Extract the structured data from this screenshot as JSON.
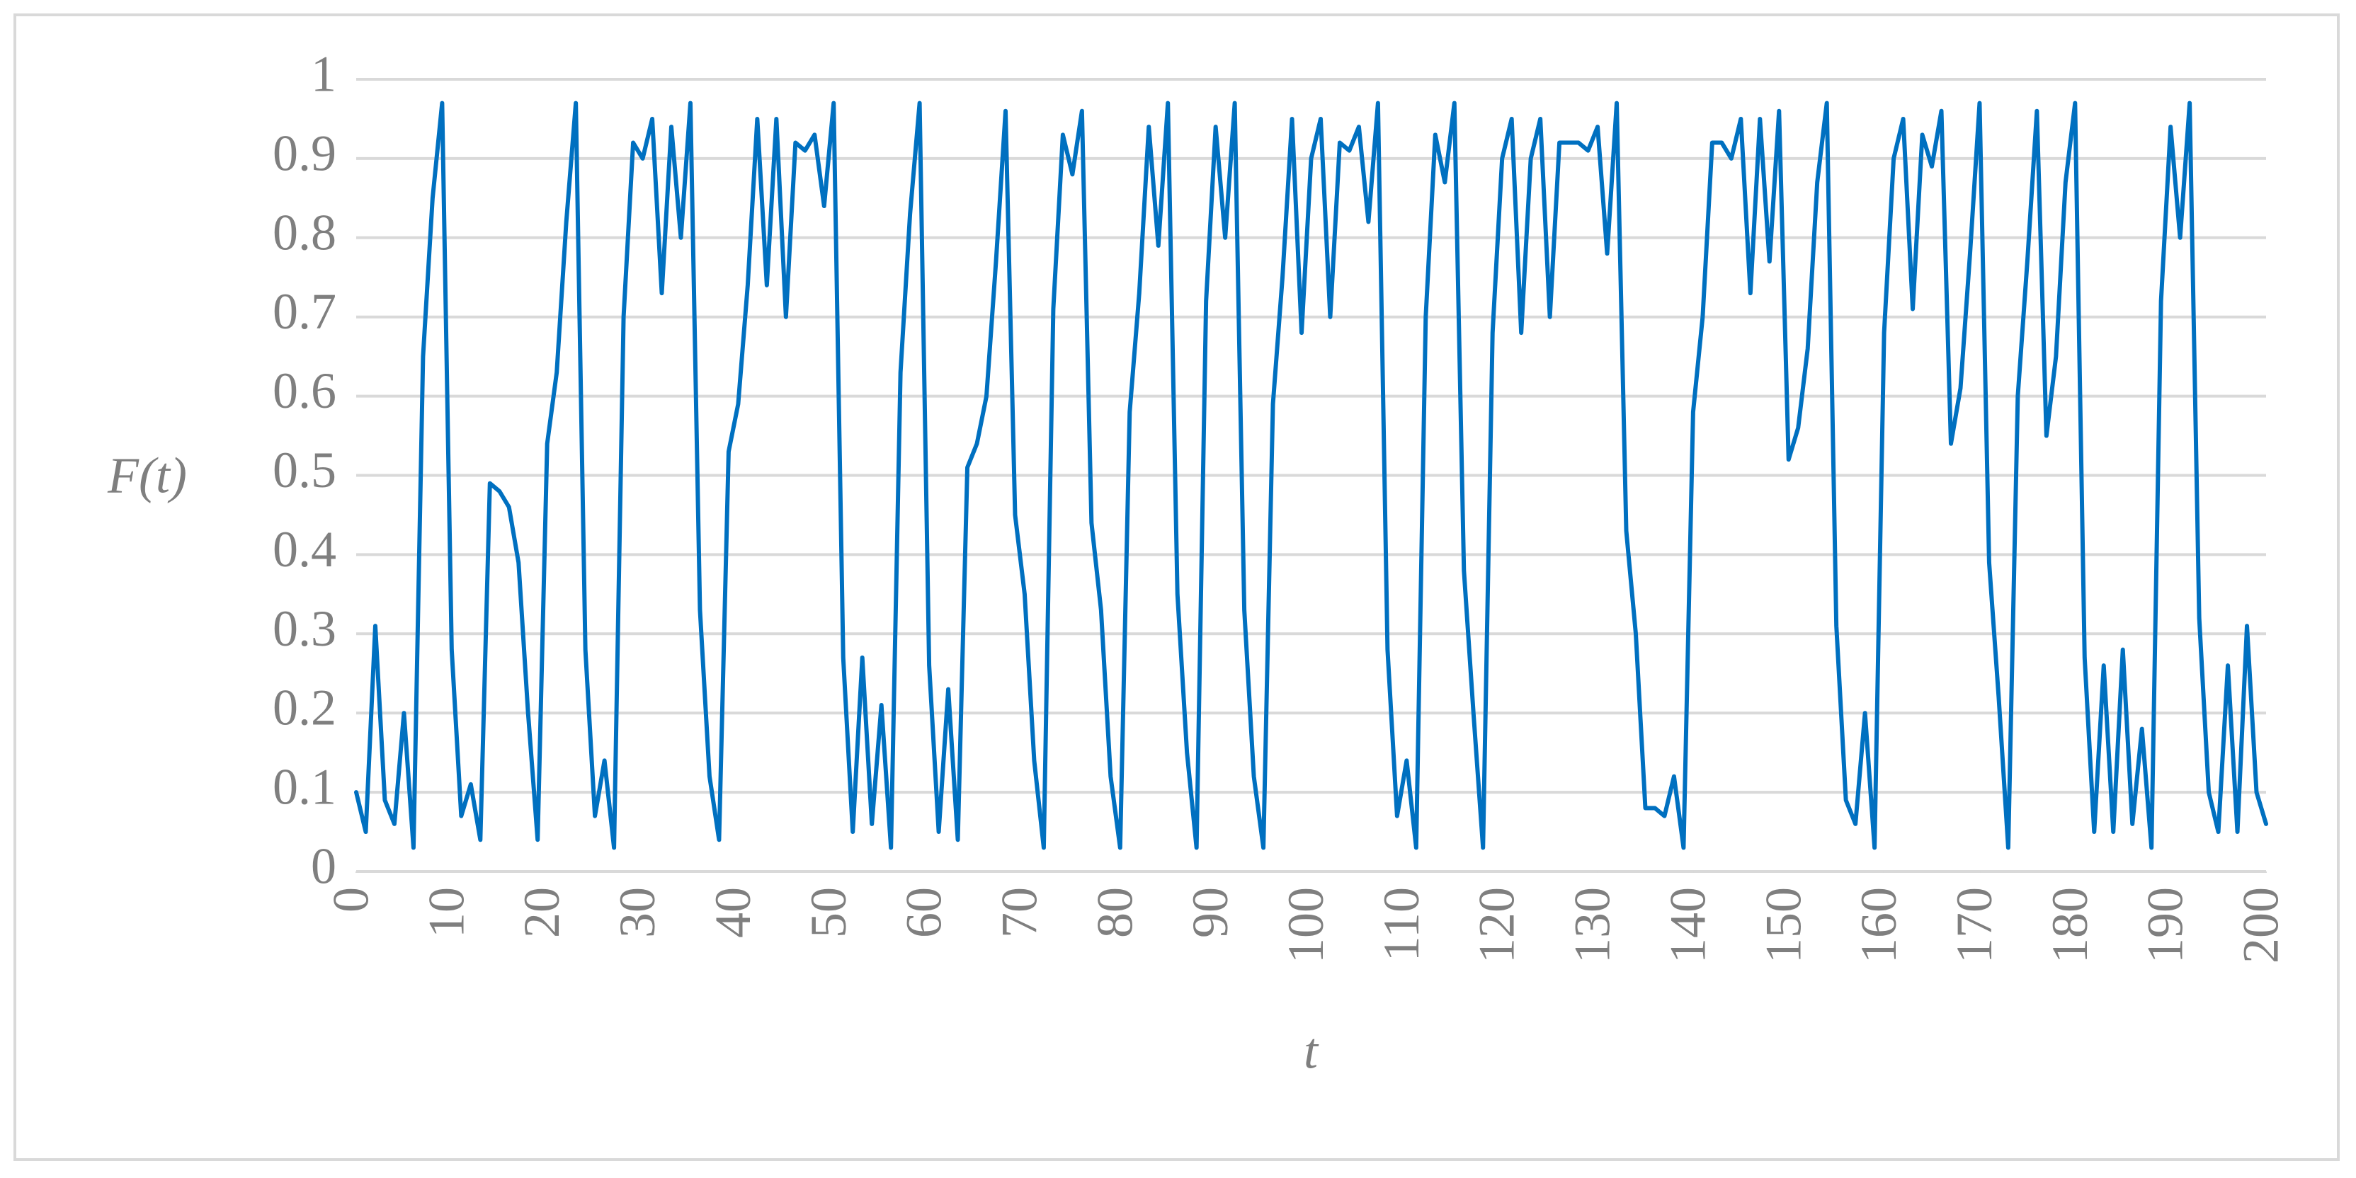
{
  "chart_data": {
    "type": "line",
    "x_label": "t",
    "y_label": "F(t)",
    "x": [
      0,
      1,
      2,
      3,
      4,
      5,
      6,
      7,
      8,
      9,
      10,
      11,
      12,
      13,
      14,
      15,
      16,
      17,
      18,
      19,
      20,
      21,
      22,
      23,
      24,
      25,
      26,
      27,
      28,
      29,
      30,
      31,
      32,
      33,
      34,
      35,
      36,
      37,
      38,
      39,
      40,
      41,
      42,
      43,
      44,
      45,
      46,
      47,
      48,
      49,
      50,
      51,
      52,
      53,
      54,
      55,
      56,
      57,
      58,
      59,
      60,
      61,
      62,
      63,
      64,
      65,
      66,
      67,
      68,
      69,
      70,
      71,
      72,
      73,
      74,
      75,
      76,
      77,
      78,
      79,
      80,
      81,
      82,
      83,
      84,
      85,
      86,
      87,
      88,
      89,
      90,
      91,
      92,
      93,
      94,
      95,
      96,
      97,
      98,
      99,
      100,
      101,
      102,
      103,
      104,
      105,
      106,
      107,
      108,
      109,
      110,
      111,
      112,
      113,
      114,
      115,
      116,
      117,
      118,
      119,
      120,
      121,
      122,
      123,
      124,
      125,
      126,
      127,
      128,
      129,
      130,
      131,
      132,
      133,
      134,
      135,
      136,
      137,
      138,
      139,
      140,
      141,
      142,
      143,
      144,
      145,
      146,
      147,
      148,
      149,
      150,
      151,
      152,
      153,
      154,
      155,
      156,
      157,
      158,
      159,
      160,
      161,
      162,
      163,
      164,
      165,
      166,
      167,
      168,
      169,
      170,
      171,
      172,
      173,
      174,
      175,
      176,
      177,
      178,
      179,
      180,
      181,
      182,
      183,
      184,
      185,
      186,
      187,
      188,
      189,
      190,
      191,
      192,
      193,
      194,
      195,
      196,
      197,
      198,
      199,
      200
    ],
    "values": [
      0.1,
      0.05,
      0.31,
      0.09,
      0.06,
      0.2,
      0.03,
      0.65,
      0.85,
      0.97,
      0.28,
      0.07,
      0.11,
      0.04,
      0.49,
      0.48,
      0.46,
      0.39,
      0.2,
      0.04,
      0.54,
      0.63,
      0.82,
      0.97,
      0.28,
      0.07,
      0.14,
      0.03,
      0.7,
      0.92,
      0.9,
      0.95,
      0.73,
      0.94,
      0.8,
      0.97,
      0.33,
      0.12,
      0.04,
      0.53,
      0.59,
      0.74,
      0.95,
      0.74,
      0.95,
      0.7,
      0.92,
      0.91,
      0.93,
      0.84,
      0.97,
      0.27,
      0.05,
      0.27,
      0.06,
      0.21,
      0.03,
      0.63,
      0.83,
      0.97,
      0.26,
      0.05,
      0.23,
      0.04,
      0.51,
      0.54,
      0.6,
      0.77,
      0.96,
      0.45,
      0.35,
      0.14,
      0.03,
      0.71,
      0.93,
      0.88,
      0.96,
      0.44,
      0.33,
      0.12,
      0.03,
      0.58,
      0.73,
      0.94,
      0.79,
      0.97,
      0.35,
      0.15,
      0.03,
      0.72,
      0.94,
      0.8,
      0.97,
      0.33,
      0.12,
      0.03,
      0.59,
      0.75,
      0.95,
      0.68,
      0.9,
      0.95,
      0.7,
      0.92,
      0.91,
      0.94,
      0.82,
      0.97,
      0.28,
      0.07,
      0.14,
      0.03,
      0.7,
      0.93,
      0.87,
      0.97,
      0.38,
      0.2,
      0.03,
      0.68,
      0.9,
      0.95,
      0.68,
      0.9,
      0.95,
      0.7,
      0.92,
      0.92,
      0.92,
      0.91,
      0.94,
      0.78,
      0.97,
      0.43,
      0.3,
      0.08,
      0.08,
      0.07,
      0.12,
      0.03,
      0.58,
      0.7,
      0.92,
      0.92,
      0.9,
      0.95,
      0.73,
      0.95,
      0.77,
      0.96,
      0.52,
      0.56,
      0.66,
      0.87,
      0.97,
      0.31,
      0.09,
      0.06,
      0.2,
      0.03,
      0.68,
      0.9,
      0.95,
      0.71,
      0.93,
      0.89,
      0.96,
      0.54,
      0.61,
      0.78,
      0.97,
      0.39,
      0.22,
      0.03,
      0.6,
      0.77,
      0.96,
      0.55,
      0.65,
      0.87,
      0.97,
      0.27,
      0.05,
      0.26,
      0.05,
      0.28,
      0.06,
      0.18,
      0.03,
      0.72,
      0.94,
      0.8,
      0.97,
      0.32,
      0.1,
      0.05,
      0.26,
      0.05,
      0.31,
      0.1,
      0.06
    ],
    "color": "#0070c0",
    "xlim": [
      0,
      200
    ],
    "xticks": [
      0,
      10,
      20,
      30,
      40,
      50,
      60,
      70,
      80,
      90,
      100,
      110,
      120,
      130,
      140,
      150,
      160,
      170,
      180,
      190,
      200
    ],
    "ylim": [
      0,
      1
    ],
    "yticks": [
      0,
      0.1,
      0.2,
      0.3,
      0.4,
      0.5,
      0.6,
      0.7,
      0.8,
      0.9,
      1
    ],
    "grid": true
  }
}
